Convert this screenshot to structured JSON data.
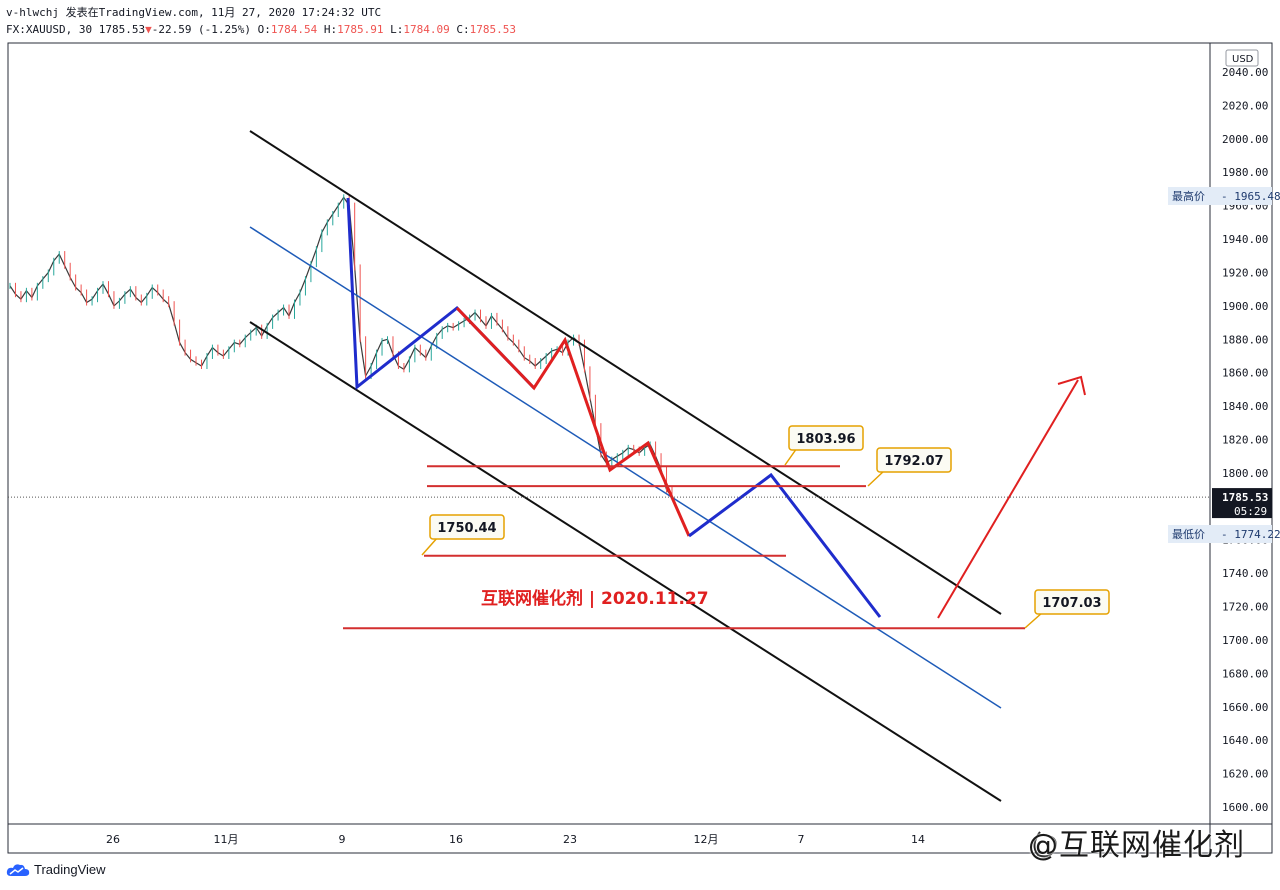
{
  "header": {
    "line1": "v-hlwchj 发表在TradingView.com, 11月 27, 2020 17:24:32 UTC",
    "symbol": "FX:XAUUSD, 30",
    "last": "1785.53",
    "arrow": "▼",
    "change": "-22.59 (-1.25%)",
    "o_label": "O:",
    "o": "1784.54",
    "h_label": "H:",
    "h": "1785.91",
    "l_label": "L:",
    "l": "1784.09",
    "c_label": "C:",
    "c": "1785.53"
  },
  "footer": {
    "brand": "TradingView",
    "logo_icon": "tradingview-cloud-icon"
  },
  "watermark": "@互联网催化剂",
  "chart_data": {
    "type": "line",
    "currency": "USD",
    "ylim": [
      1590,
      2050
    ],
    "y_ticks": [
      1600,
      1620,
      1640,
      1660,
      1680,
      1700,
      1720,
      1740,
      1760,
      1780,
      1800,
      1820,
      1840,
      1860,
      1880,
      1900,
      1920,
      1940,
      1960,
      1980,
      2000,
      2020,
      2040
    ],
    "x_ticks": [
      {
        "label": "26"
      },
      {
        "label": "11月"
      },
      {
        "label": "9"
      },
      {
        "label": "16"
      },
      {
        "label": "23"
      },
      {
        "label": "12月"
      },
      {
        "label": "7"
      },
      {
        "label": "14"
      }
    ],
    "price_line": {
      "value": 1785.53,
      "label": "1785.53",
      "countdown": "05:29"
    },
    "high_marker": {
      "label": "最高价",
      "value": "1965.48"
    },
    "low_marker": {
      "label": "最低价",
      "value": "1774.22"
    },
    "price_series": [
      1912,
      1907,
      1904,
      1909,
      1905,
      1912,
      1916,
      1920,
      1927,
      1931,
      1924,
      1917,
      1911,
      1908,
      1902,
      1904,
      1909,
      1913,
      1907,
      1900,
      1903,
      1907,
      1910,
      1905,
      1902,
      1906,
      1911,
      1908,
      1904,
      1901,
      1890,
      1878,
      1872,
      1868,
      1866,
      1864,
      1870,
      1875,
      1872,
      1870,
      1874,
      1878,
      1877,
      1881,
      1884,
      1887,
      1882,
      1888,
      1893,
      1896,
      1899,
      1894,
      1902,
      1908,
      1916,
      1925,
      1934,
      1944,
      1950,
      1955,
      1960,
      1965,
      1960,
      1923,
      1880,
      1858,
      1864,
      1872,
      1879,
      1880,
      1871,
      1864,
      1862,
      1868,
      1875,
      1872,
      1869,
      1876,
      1882,
      1886,
      1888,
      1887,
      1889,
      1891,
      1893,
      1896,
      1892,
      1888,
      1894,
      1890,
      1886,
      1881,
      1878,
      1874,
      1869,
      1867,
      1864,
      1867,
      1870,
      1873,
      1874,
      1872,
      1878,
      1881,
      1878,
      1862,
      1845,
      1828,
      1811,
      1806,
      1808,
      1810,
      1812,
      1815,
      1814,
      1812,
      1815,
      1817,
      1810,
      1802,
      1790,
      1785.53
    ],
    "annotations": [
      {
        "label": "1803.96",
        "value": 1803.96
      },
      {
        "label": "1792.07",
        "value": 1792.07
      },
      {
        "label": "1750.44",
        "value": 1750.44
      },
      {
        "label": "1707.03",
        "value": 1707.03
      }
    ],
    "caption": "互联网催化剂 | 2020.11.27"
  }
}
